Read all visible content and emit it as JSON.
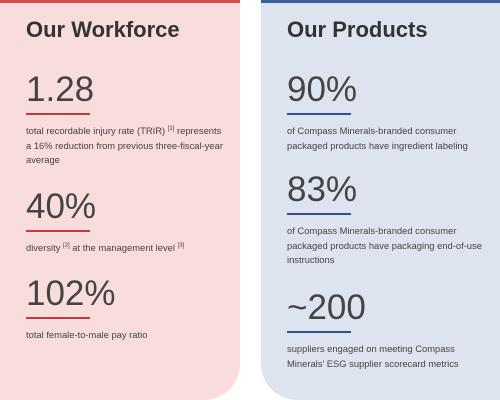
{
  "workforce": {
    "title": "Our Workforce",
    "metrics": [
      {
        "value": "1.28",
        "desc_pre": "total recordable injury rate (TRIR)",
        "fn1": "[1]",
        "desc_post": " represents a 16% reduction from previous three-fiscal-year average"
      },
      {
        "value": "40%",
        "desc_pre": "diversity",
        "fn1": "[2]",
        "desc_mid": " at the management level",
        "fn2": "[3]"
      },
      {
        "value": "102%",
        "desc": "total female-to-male pay ratio"
      }
    ]
  },
  "products": {
    "title": "Our Products",
    "metrics": [
      {
        "value": "90%",
        "desc": "of Compass Minerals-branded consumer packaged products have ingredient labeling"
      },
      {
        "value": "83%",
        "desc": "of Compass Minerals-branded consumer packaged products have packaging end-of-use instructions"
      },
      {
        "value": "~200",
        "desc": "suppliers engaged on meeting Compass Minerals’ ESG supplier scorecard metrics"
      }
    ]
  },
  "colors": {
    "workforce_bg": "#f9dcdc",
    "workforce_accent": "#c9393a",
    "products_bg": "#dde3ef",
    "products_accent": "#34508c",
    "text": "#444444"
  }
}
